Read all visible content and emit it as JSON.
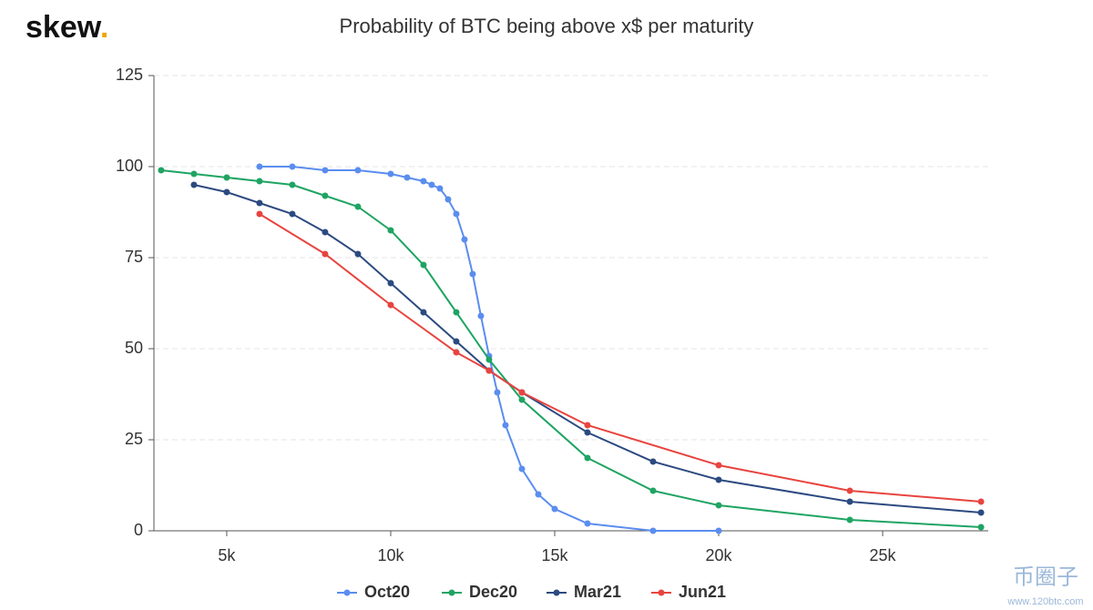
{
  "logo": {
    "text": "skew",
    "dot": "."
  },
  "watermark": {
    "text": "币圈子",
    "url": "www.120btc.com"
  },
  "chart_data": {
    "type": "line",
    "title": "Probability of BTC being above x$ per maturity",
    "xlim": [
      2780,
      28220
    ],
    "ylim": [
      0,
      125
    ],
    "xticks": [
      {
        "value": 5000,
        "label": "5k"
      },
      {
        "value": 10000,
        "label": "10k"
      },
      {
        "value": 15000,
        "label": "15k"
      },
      {
        "value": 20000,
        "label": "20k"
      },
      {
        "value": 25000,
        "label": "25k"
      }
    ],
    "yticks": [
      0,
      25,
      50,
      75,
      100,
      125
    ],
    "grid": true,
    "legend": "bottom",
    "series": [
      {
        "name": "Oct20",
        "color": "#5b8def",
        "x": [
          6000,
          7000,
          8000,
          9000,
          10000,
          10500,
          11000,
          11250,
          11500,
          11750,
          12000,
          12250,
          12500,
          12750,
          13000,
          13250,
          13500,
          14000,
          14500,
          15000,
          16000,
          18000,
          20000
        ],
        "values": [
          100,
          100,
          99,
          99,
          98,
          97,
          96,
          95,
          94,
          91,
          87,
          80,
          70.5,
          59,
          48,
          38,
          29,
          17,
          10,
          6,
          2,
          0,
          0
        ]
      },
      {
        "name": "Dec20",
        "color": "#1fa463",
        "x": [
          3000,
          4000,
          5000,
          6000,
          7000,
          8000,
          9000,
          10000,
          11000,
          12000,
          13000,
          14000,
          16000,
          18000,
          20000,
          24000,
          28000
        ],
        "values": [
          99,
          98,
          97,
          96,
          95,
          92,
          89,
          82.5,
          73,
          60,
          47,
          36,
          20,
          11,
          7,
          3,
          1
        ]
      },
      {
        "name": "Mar21",
        "color": "#2c4a80",
        "x": [
          4000,
          5000,
          6000,
          7000,
          8000,
          9000,
          10000,
          11000,
          12000,
          13000,
          14000,
          16000,
          18000,
          20000,
          24000,
          28000
        ],
        "values": [
          95,
          93,
          90,
          87,
          82,
          76,
          68,
          60,
          52,
          44,
          38,
          27,
          19,
          14,
          8,
          5
        ]
      },
      {
        "name": "Jun21",
        "color": "#e8443f",
        "x": [
          6000,
          8000,
          10000,
          12000,
          13000,
          14000,
          16000,
          20000,
          24000,
          28000
        ],
        "values": [
          87,
          76,
          62,
          49,
          44,
          38,
          29,
          18,
          11,
          8
        ]
      }
    ]
  }
}
